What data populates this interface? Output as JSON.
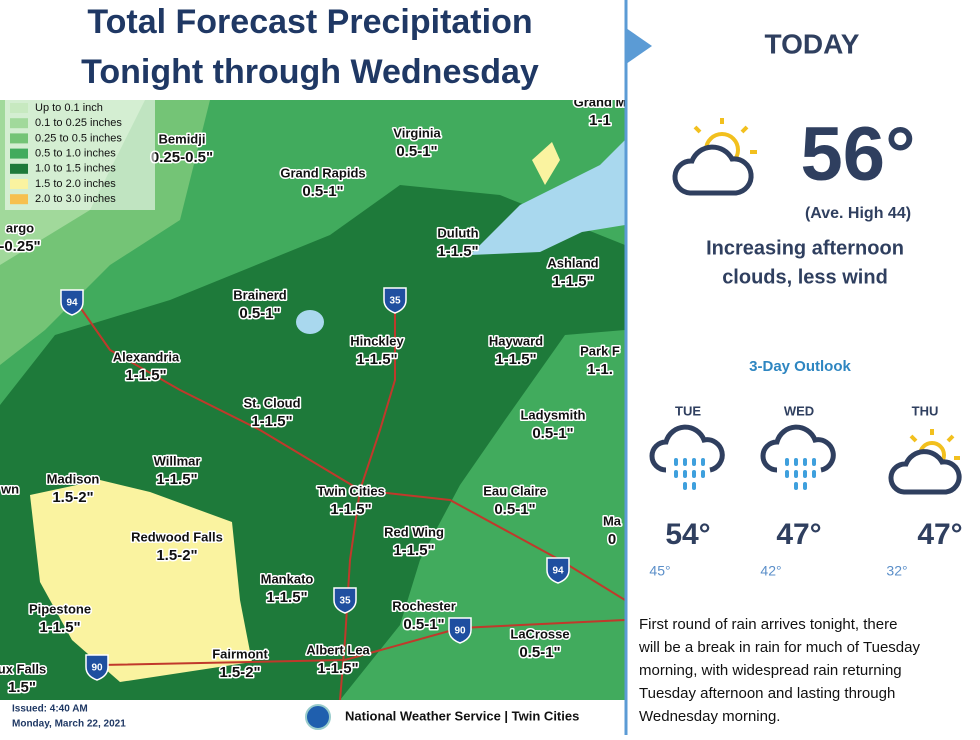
{
  "map": {
    "title": [
      "Total Forecast Precipitation",
      "Tonight through Wednesday"
    ],
    "legend": [
      {
        "label": "Up to 0.1 inch",
        "color": "#c7e9c0"
      },
      {
        "label": "0.1 to 0.25 inches",
        "color": "#a1d99b"
      },
      {
        "label": "0.25 to 0.5 inches",
        "color": "#74c476"
      },
      {
        "label": "0.5 to 1.0 inches",
        "color": "#41ab5d"
      },
      {
        "label": "1.0 to 1.5 inches",
        "color": "#1e7a3a"
      },
      {
        "label": "1.5 to 2.0 inches",
        "color": "#faf3a0"
      },
      {
        "label": "2.0 to 3.0 inches",
        "color": "#f6c04f"
      }
    ],
    "cities": [
      {
        "name": "Grand M",
        "amount": "1-1"
      },
      {
        "name": "Bemidji",
        "amount": "0.25-0.5\""
      },
      {
        "name": "Virginia",
        "amount": "0.5-1\""
      },
      {
        "name": "Grand Rapids",
        "amount": "0.5-1\""
      },
      {
        "name": "argo",
        "amount": "-0.25\""
      },
      {
        "name": "Duluth",
        "amount": "1-1.5\""
      },
      {
        "name": "Ashland",
        "amount": "1-1.5\""
      },
      {
        "name": "Brainerd",
        "amount": "0.5-1\""
      },
      {
        "name": "Hinckley",
        "amount": "1-1.5\""
      },
      {
        "name": "Hayward",
        "amount": "1-1.5\""
      },
      {
        "name": "Park F",
        "amount": "1-1."
      },
      {
        "name": "Alexandria",
        "amount": "1-1.5\""
      },
      {
        "name": "St. Cloud",
        "amount": "1-1.5\""
      },
      {
        "name": "Ladysmith",
        "amount": "0.5-1\""
      },
      {
        "name": "Willmar",
        "amount": "1-1.5\""
      },
      {
        "name": "Madison",
        "amount": "1.5-2\""
      },
      {
        "name": "wn",
        "amount": ""
      },
      {
        "name": "Twin Cities",
        "amount": "1-1.5\""
      },
      {
        "name": "Eau Claire",
        "amount": "0.5-1\""
      },
      {
        "name": "Ma",
        "amount": "0"
      },
      {
        "name": "Red Wing",
        "amount": "1-1.5\""
      },
      {
        "name": "Redwood Falls",
        "amount": "1.5-2\""
      },
      {
        "name": "Mankato",
        "amount": "1-1.5\""
      },
      {
        "name": "Pipestone",
        "amount": "1-1.5\""
      },
      {
        "name": "Rochester",
        "amount": "0.5-1\""
      },
      {
        "name": "LaCrosse",
        "amount": "0.5-1\""
      },
      {
        "name": "Fairmont",
        "amount": "1.5-2\""
      },
      {
        "name": "Albert Lea",
        "amount": "1-1.5\""
      },
      {
        "name": "ux Falls",
        "amount": "1.5\""
      }
    ],
    "highways": [
      "94",
      "35",
      "35",
      "94",
      "90",
      "90"
    ]
  },
  "footer": {
    "issued": "Issued: 4:40 AM",
    "date": "Monday, March 22, 2021",
    "office": "National Weather Service | Twin Cities"
  },
  "today": {
    "heading": "TODAY",
    "high": "56°",
    "average": "(Ave. High 44)",
    "summary": [
      "Increasing afternoon",
      "clouds, less wind"
    ]
  },
  "outlook": {
    "heading": "3-Day Outlook",
    "days": [
      {
        "day": "TUE",
        "high": "54°",
        "low": "45°",
        "icon": "rain"
      },
      {
        "day": "WED",
        "high": "47°",
        "low": "42°",
        "icon": "rain"
      },
      {
        "day": "THU",
        "high": "47°",
        "low": "32°",
        "icon": "partly-cloudy"
      }
    ],
    "discussion": [
      "First round of rain arrives tonight, there",
      "will be a break in rain for much of Tuesday",
      "morning, with widespread rain returning",
      "Tuesday afternoon and lasting through",
      "Wednesday morning."
    ]
  }
}
